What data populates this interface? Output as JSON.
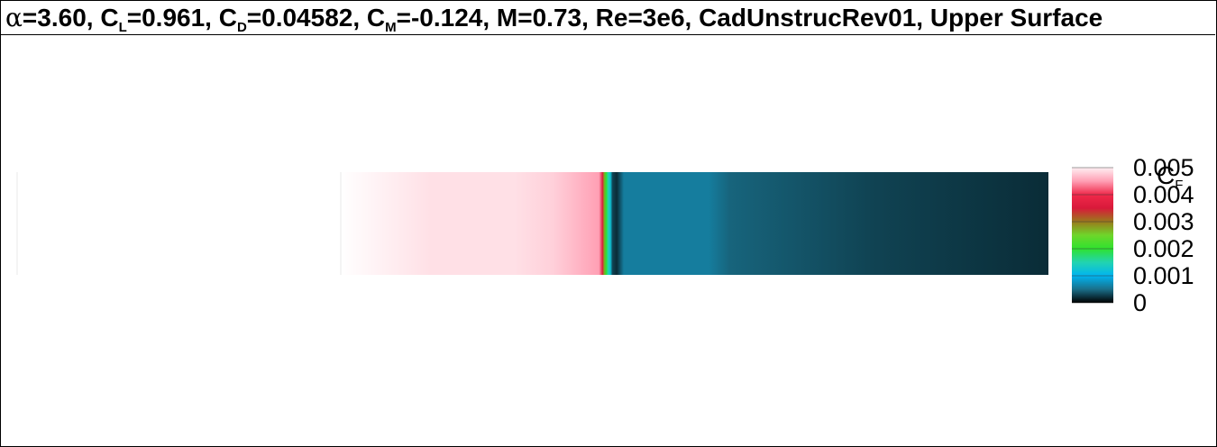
{
  "title": {
    "alpha_symbol": "α",
    "alpha_text": "=3.60, C",
    "cl_sub": "L",
    "cl_text": "=0.961, C",
    "cd_sub": "D",
    "cd_text": "=0.04582, C",
    "cm_sub": "M",
    "rest_text": "=-0.124, M=0.73, Re=3e6, CadUnstrucRev01, Upper Surface"
  },
  "chart_data": {
    "type": "heatmap",
    "title": "α=3.60, CL=0.961, CD=0.04582, CM=-0.124, M=0.73, Re=3e6, CadUnstrucRev01, Upper Surface",
    "colorbar": {
      "label": "C",
      "label_sub": "F",
      "range": [
        0,
        0.005
      ],
      "ticks": [
        "0.005",
        "0.004",
        "0.003",
        "0.002",
        "0.001",
        "0"
      ],
      "tick_values": [
        0.005,
        0.004,
        0.003,
        0.002,
        0.001,
        0
      ],
      "colormap": [
        {
          "value": 0.0,
          "color": "#000000"
        },
        {
          "value": 0.0005,
          "color": "#1a6f8a"
        },
        {
          "value": 0.001,
          "color": "#00b4f0"
        },
        {
          "value": 0.0015,
          "color": "#22d4b0"
        },
        {
          "value": 0.002,
          "color": "#2fe22f"
        },
        {
          "value": 0.0025,
          "color": "#6ed62a"
        },
        {
          "value": 0.003,
          "color": "#9a7a1c"
        },
        {
          "value": 0.0035,
          "color": "#d81a3a"
        },
        {
          "value": 0.004,
          "color": "#f0284a"
        },
        {
          "value": 0.0045,
          "color": "#ff9fb4"
        },
        {
          "value": 0.005,
          "color": "#fff0f3"
        }
      ]
    },
    "surface_profile": {
      "x": [
        0.0,
        0.245,
        0.3,
        0.365,
        0.37,
        0.372,
        0.375,
        0.378,
        0.381,
        0.384,
        0.39,
        0.4,
        0.45,
        0.52,
        0.55,
        0.75,
        1.0
      ],
      "cf": [
        0.0049,
        0.0049,
        0.0048,
        0.0045,
        0.0035,
        0.0028,
        0.002,
        0.0015,
        0.0012,
        0.0003,
        0.0002,
        0.0006,
        0.0006,
        0.0006,
        0.00045,
        0.0003,
        0.0002
      ]
    },
    "grid": false,
    "legend_position": "right"
  }
}
